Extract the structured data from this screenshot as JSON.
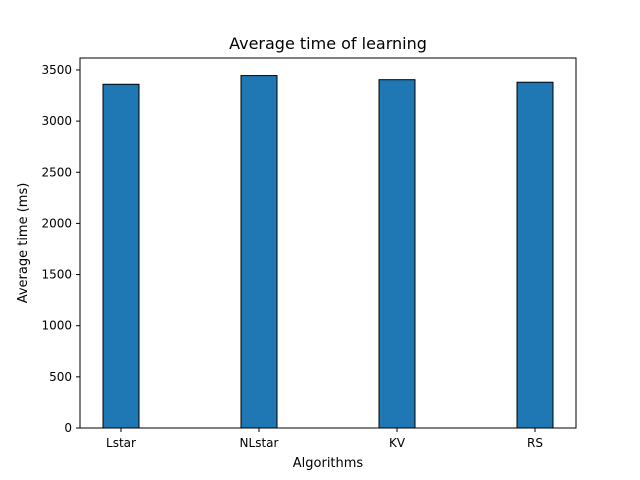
{
  "chart_data": {
    "type": "bar",
    "title": "Average time of learning",
    "xlabel": "Algorithms",
    "ylabel": "Average time (ms)",
    "categories": [
      "Lstar",
      "NLstar",
      "KV",
      "RS"
    ],
    "values": [
      3360,
      3445,
      3405,
      3380
    ],
    "ylim": [
      0,
      3617
    ],
    "yticks": [
      0,
      500,
      1000,
      1500,
      2000,
      2500,
      3000,
      3500
    ],
    "grid": false,
    "legend": "none",
    "bar_color": "#1f77b4",
    "bar_edge_color": "#000000"
  }
}
